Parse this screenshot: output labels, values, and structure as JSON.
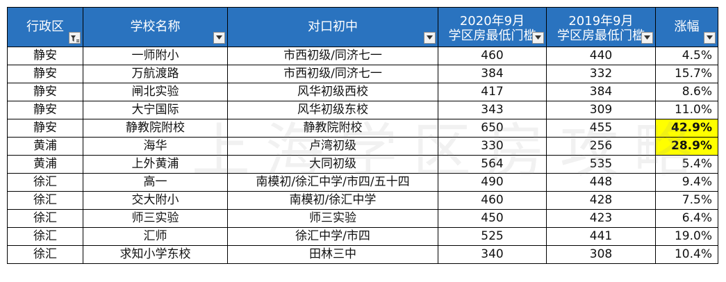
{
  "headers": [
    {
      "label": "行政区",
      "filter": "active"
    },
    {
      "label": "学校名称",
      "filter": "dropdown"
    },
    {
      "label": "对口初中",
      "filter": "dropdown"
    },
    {
      "line1": "2020年9月",
      "line2": "学区房最低门槛",
      "filter": "dropdown"
    },
    {
      "line1": "2019年9月",
      "line2": "学区房最低门槛",
      "filter": "dropdown"
    },
    {
      "label": "涨幅",
      "filter": "dropdown"
    }
  ],
  "rows": [
    {
      "district": "静安",
      "school": "一师附小",
      "middle": "市西初级/同济七一",
      "p2020": "460",
      "p2019": "440",
      "rise": "4.5%",
      "highlight": false
    },
    {
      "district": "静安",
      "school": "万航渡路",
      "middle": "市西初级/同济七一",
      "p2020": "384",
      "p2019": "332",
      "rise": "15.7%",
      "highlight": false
    },
    {
      "district": "静安",
      "school": "闸北实验",
      "middle": "风华初级西校",
      "p2020": "417",
      "p2019": "384",
      "rise": "8.6%",
      "highlight": false
    },
    {
      "district": "静安",
      "school": "大宁国际",
      "middle": "风华初级东校",
      "p2020": "343",
      "p2019": "309",
      "rise": "11.0%",
      "highlight": false
    },
    {
      "district": "静安",
      "school": "静教院附校",
      "middle": "静教院附校",
      "p2020": "650",
      "p2019": "455",
      "rise": "42.9%",
      "highlight": true
    },
    {
      "district": "黄浦",
      "school": "海华",
      "middle": "卢湾初级",
      "p2020": "330",
      "p2019": "256",
      "rise": "28.9%",
      "highlight": true
    },
    {
      "district": "黄浦",
      "school": "上外黄浦",
      "middle": "大同初级",
      "p2020": "564",
      "p2019": "535",
      "rise": "5.4%",
      "highlight": false
    },
    {
      "district": "徐汇",
      "school": "高一",
      "middle": "南模初/徐汇中学/市四/五十四",
      "p2020": "490",
      "p2019": "448",
      "rise": "9.4%",
      "highlight": false
    },
    {
      "district": "徐汇",
      "school": "交大附小",
      "middle": "南模初/徐汇中学",
      "p2020": "460",
      "p2019": "428",
      "rise": "7.5%",
      "highlight": false
    },
    {
      "district": "徐汇",
      "school": "师三实验",
      "middle": "师三实验",
      "p2020": "450",
      "p2019": "423",
      "rise": "6.4%",
      "highlight": false
    },
    {
      "district": "徐汇",
      "school": "汇师",
      "middle": "徐汇中学/市四",
      "p2020": "525",
      "p2019": "441",
      "rise": "19.0%",
      "highlight": false
    },
    {
      "district": "徐汇",
      "school": "求知小学东校",
      "middle": "田林三中",
      "p2020": "340",
      "p2019": "308",
      "rise": "10.4%",
      "highlight": false
    }
  ],
  "watermark": "上海学区房攻略",
  "colors": {
    "header_bg": "#2a73bf",
    "highlight": "#ffff00"
  }
}
